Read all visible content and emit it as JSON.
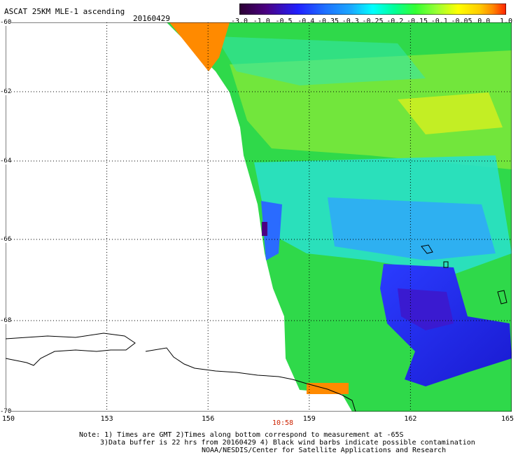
{
  "header": {
    "title": "ASCAT 25KM MLE-1 ascending",
    "date": "20160429"
  },
  "colorbar": {
    "labels": [
      "-3.0",
      "-1.0",
      "-0.5",
      "-0.4",
      "-0.35",
      "-0.3",
      "-0.25",
      "-0.2",
      "-0.15",
      "-0.1",
      "-0.05",
      "0.0",
      "1.0"
    ],
    "colors": [
      "#2b0032",
      "#4b0082",
      "#2020ff",
      "#1e6fff",
      "#1aa9ff",
      "#00ffff",
      "#00ff99",
      "#33ff33",
      "#99ff33",
      "#ffff00",
      "#ffcc00",
      "#ff8800",
      "#ff2000"
    ]
  },
  "map": {
    "lat_labels": [
      "-60",
      "-62",
      "-64",
      "-66",
      "-68",
      "-70"
    ],
    "lon_labels": [
      "150",
      "153",
      "156",
      "159",
      "162",
      "165"
    ],
    "time_label": "10:58"
  },
  "footer": {
    "line1": "Note: 1) Times are GMT 2)Times along bottom correspond to measurement at -65S",
    "line2": "3)Data buffer is 22 hrs from 20160429 4) Black wind barbs indicate possible contamination",
    "line3": "NOAA/NESDIS/Center for Satellite Applications and Research"
  }
}
